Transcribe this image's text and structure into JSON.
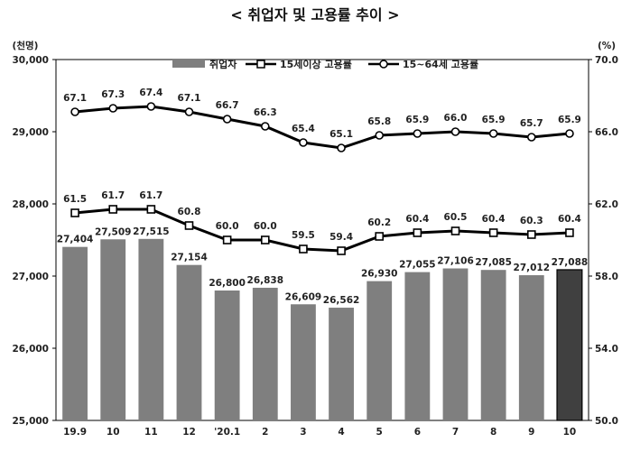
{
  "chart_data": {
    "type": "bar",
    "title": "< 취업자 및 고용률 추이 >",
    "categories": [
      "19.9",
      "10",
      "11",
      "12",
      "'20.1",
      "2",
      "3",
      "4",
      "5",
      "6",
      "7",
      "8",
      "9",
      "10"
    ],
    "left_axis": {
      "unit": "(천명)",
      "ylim": [
        25000,
        30000
      ],
      "ticks": [
        "25,000",
        "26,000",
        "27,000",
        "28,000",
        "29,000",
        "30,000"
      ],
      "tick_values": [
        25000,
        26000,
        27000,
        28000,
        29000,
        30000
      ]
    },
    "right_axis": {
      "unit": "(%)",
      "ylim": [
        50,
        70
      ],
      "ticks": [
        "50.0",
        "54.0",
        "58.0",
        "62.0",
        "66.0",
        "70.0"
      ],
      "tick_values": [
        50,
        54,
        58,
        62,
        66,
        70
      ]
    },
    "legend_position": "top",
    "highlight_last_bar": true,
    "series": [
      {
        "name": "취업자",
        "kind": "bar",
        "axis": "left",
        "color": "#7f7f7f",
        "highlight_color": "#404040",
        "values": [
          27404,
          27509,
          27515,
          27154,
          26800,
          26838,
          26609,
          26562,
          26930,
          27055,
          27106,
          27085,
          27012,
          27088
        ],
        "labels": [
          "27,404",
          "27,509",
          "27,515",
          "27,154",
          "26,800",
          "26,838",
          "26,609",
          "26,562",
          "26,930",
          "27,055",
          "27,106",
          "27,085",
          "27,012",
          "27,088"
        ]
      },
      {
        "name": "15세이상 고용률",
        "kind": "line",
        "marker": "square",
        "axis": "right",
        "color": "#000000",
        "values": [
          61.5,
          61.7,
          61.7,
          60.8,
          60.0,
          60.0,
          59.5,
          59.4,
          60.2,
          60.4,
          60.5,
          60.4,
          60.3,
          60.4
        ],
        "labels": [
          "61.5",
          "61.7",
          "61.7",
          "60.8",
          "60.0",
          "60.0",
          "59.5",
          "59.4",
          "60.2",
          "60.4",
          "60.5",
          "60.4",
          "60.3",
          "60.4"
        ]
      },
      {
        "name": "15~64세 고용률",
        "kind": "line",
        "marker": "circle",
        "axis": "right",
        "color": "#000000",
        "values": [
          67.1,
          67.3,
          67.4,
          67.1,
          66.7,
          66.3,
          65.4,
          65.1,
          65.8,
          65.9,
          66.0,
          65.9,
          65.7,
          65.9
        ],
        "labels": [
          "67.1",
          "67.3",
          "67.4",
          "67.1",
          "66.7",
          "66.3",
          "65.4",
          "65.1",
          "65.8",
          "65.9",
          "66.0",
          "65.9",
          "65.7",
          "65.9"
        ]
      }
    ]
  }
}
